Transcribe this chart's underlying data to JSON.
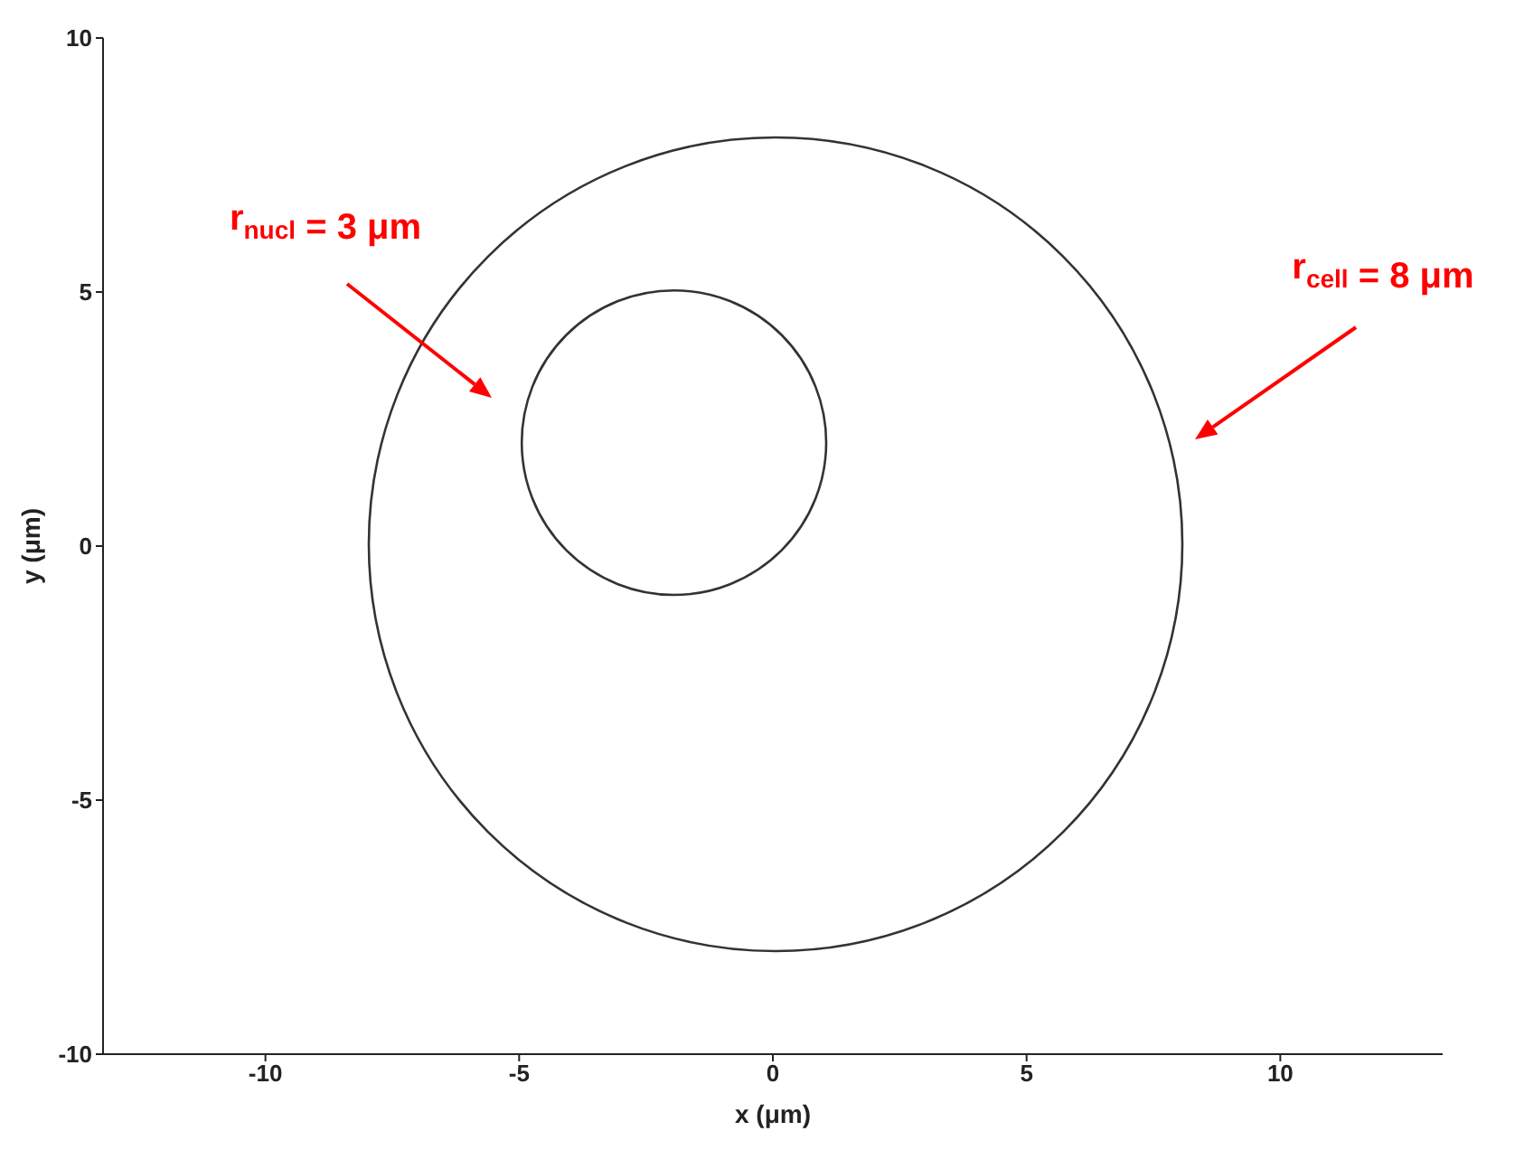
{
  "chart_data": {
    "type": "line",
    "xlabel": "x (μm)",
    "ylabel": "y (μm)",
    "xlim": [
      -13.2,
      13.2
    ],
    "xticks": [
      -10,
      -5,
      0,
      5,
      10
    ],
    "ylim": [
      -10,
      10
    ],
    "yticks": [
      -10,
      -5,
      0,
      5,
      10
    ],
    "annotations": [
      "r$_{nucl}$ = 3 μm",
      "r$_{cell}$ = 8 μm"
    ]
  }
}
